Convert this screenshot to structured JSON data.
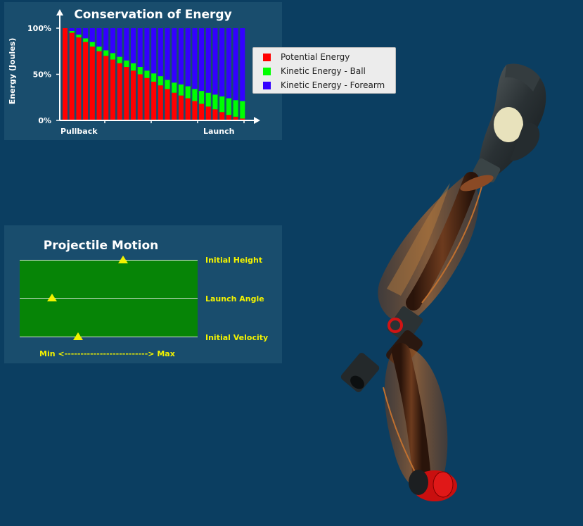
{
  "energy_panel": {
    "title": "Conservation of Energy",
    "ylabel": "Energy (Joules)",
    "yticks": [
      "100%",
      "50%",
      "0%"
    ],
    "x_start_label": "Pullback",
    "x_end_label": "Launch",
    "legend": [
      {
        "label": "Potential Energy",
        "color": "#ff0000"
      },
      {
        "label": "Kinetic Energy - Ball",
        "color": "#00ff00"
      },
      {
        "label": "Kinetic Energy - Forearm",
        "color": "#3300ff"
      }
    ]
  },
  "chart_data": {
    "type": "bar",
    "stacked": true,
    "title": "Conservation of Energy",
    "ylabel": "Energy (Joules)",
    "ylim": [
      0,
      100
    ],
    "unit": "%",
    "x_start_label": "Pullback",
    "x_end_label": "Launch",
    "series": [
      {
        "name": "Potential Energy",
        "color": "#ff0000",
        "values": [
          100,
          95,
          90,
          85,
          80,
          75,
          70,
          66,
          62,
          58,
          54,
          50,
          46,
          42,
          38,
          34,
          30,
          27,
          24,
          21,
          18,
          15,
          12,
          9,
          6,
          4,
          2
        ]
      },
      {
        "name": "Kinetic Energy - Ball",
        "color": "#00ff00",
        "values": [
          0,
          2,
          3,
          4,
          5,
          5,
          6,
          7,
          7,
          7,
          8,
          8,
          8,
          9,
          10,
          10,
          11,
          12,
          13,
          13,
          14,
          15,
          16,
          17,
          18,
          18,
          19
        ]
      },
      {
        "name": "Kinetic Energy - Forearm",
        "color": "#3300ff",
        "values": [
          0,
          3,
          7,
          11,
          15,
          20,
          24,
          27,
          31,
          35,
          38,
          42,
          46,
          49,
          52,
          56,
          59,
          61,
          63,
          66,
          68,
          70,
          72,
          74,
          76,
          78,
          79
        ]
      }
    ]
  },
  "motion_panel": {
    "title": "Projectile Motion",
    "sliders": [
      {
        "label": "Initial Height",
        "value": 0.58
      },
      {
        "label": "Launch Angle",
        "value": 0.18
      },
      {
        "label": "Initial Velocity",
        "value": 0.33
      }
    ],
    "range_label": "Min <--------------------------> Max",
    "thumb_color": "#f2f200",
    "field_color": "#068406"
  }
}
